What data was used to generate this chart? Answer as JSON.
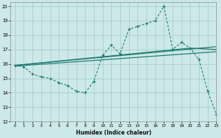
{
  "bg_color": "#cce8e8",
  "grid_color": "#aacccc",
  "line_color": "#1a7a6e",
  "xlabel": "Humidex (Indice chaleur)",
  "xlim": [
    -0.5,
    23
  ],
  "ylim": [
    12,
    20.3
  ],
  "yticks": [
    12,
    13,
    14,
    15,
    16,
    17,
    18,
    19,
    20
  ],
  "xticks": [
    0,
    1,
    2,
    3,
    4,
    5,
    6,
    7,
    8,
    9,
    10,
    11,
    12,
    13,
    14,
    15,
    16,
    17,
    18,
    19,
    20,
    21,
    22,
    23
  ],
  "line1_x": [
    0,
    1,
    2,
    3,
    4,
    5,
    6,
    7,
    8,
    9,
    10,
    11,
    12,
    13,
    14,
    15,
    16,
    17,
    18,
    19,
    20,
    21,
    22,
    23
  ],
  "line1_y": [
    15.9,
    15.8,
    15.3,
    15.1,
    15.0,
    14.7,
    14.5,
    14.1,
    14.0,
    14.8,
    16.6,
    17.3,
    16.7,
    18.4,
    18.6,
    18.8,
    19.0,
    20.0,
    17.0,
    17.5,
    17.1,
    16.3,
    14.1,
    12.5
  ],
  "line2_x": [
    0,
    23
  ],
  "line2_y": [
    15.9,
    17.2
  ],
  "line3_x": [
    0,
    20,
    23
  ],
  "line3_y": [
    15.9,
    17.1,
    17.0
  ],
  "line4_x": [
    0,
    23
  ],
  "line4_y": [
    15.85,
    16.85
  ]
}
